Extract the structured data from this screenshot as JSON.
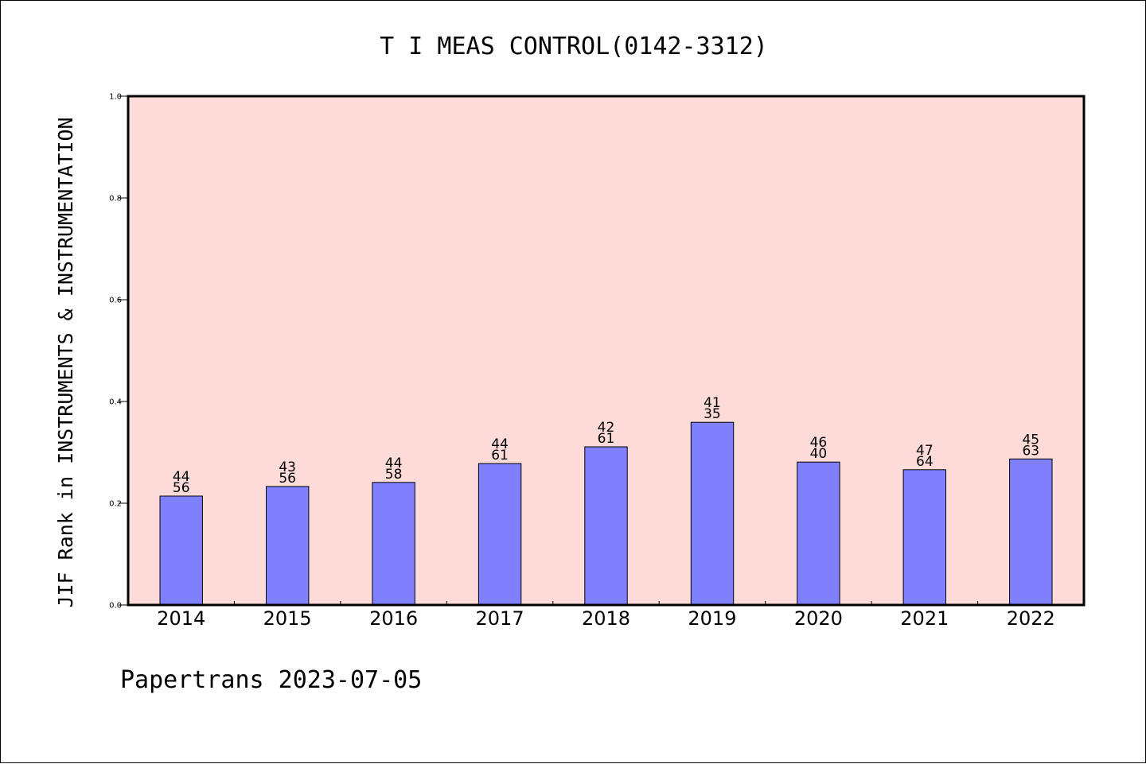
{
  "chart_data": {
    "type": "bar",
    "title": "T I MEAS CONTROL(0142-3312)",
    "xlabel": "",
    "ylabel": "JIF Rank in INSTRUMENTS & INSTRUMENTATION",
    "ylim": [
      0,
      1.0
    ],
    "yticks": [
      "0.0",
      "0.2",
      "0.4",
      "0.6",
      "0.8",
      "1.0"
    ],
    "categories": [
      "2014",
      "2015",
      "2016",
      "2017",
      "2018",
      "2019",
      "2020",
      "2021",
      "2022"
    ],
    "values": [
      0.214,
      0.233,
      0.241,
      0.278,
      0.311,
      0.359,
      0.281,
      0.266,
      0.287
    ],
    "labels_top": [
      "44",
      "43",
      "44",
      "44",
      "42",
      "41",
      "46",
      "47",
      "45"
    ],
    "labels_bottom": [
      "56",
      "56",
      "58",
      "61",
      "61",
      "35",
      "40",
      "64",
      "63"
    ],
    "grid": false,
    "plot_background": "#fddbd8",
    "bar_color": "#8080ff"
  },
  "footer": {
    "text": "Papertrans 2023-07-05"
  }
}
